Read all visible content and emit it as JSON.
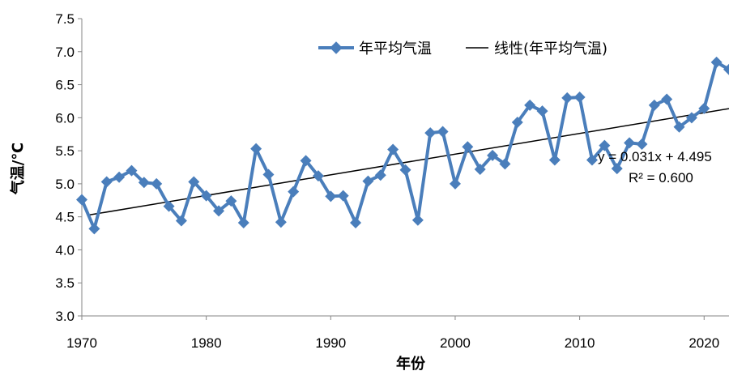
{
  "chart_data": {
    "type": "line",
    "xlabel": "年份",
    "ylabel": "气温/℃",
    "xlim": [
      1970,
      2022
    ],
    "ylim": [
      3.0,
      7.5
    ],
    "x_ticks": [
      "1970",
      "1980",
      "1990",
      "2000",
      "2010",
      "2020"
    ],
    "y_ticks": [
      "3.0",
      "3.5",
      "4.0",
      "4.5",
      "5.0",
      "5.5",
      "6.0",
      "6.5",
      "7.0",
      "7.5"
    ],
    "legend_position": "top-right",
    "series": [
      {
        "name": "年平均气温",
        "color": "#4a7ebb",
        "marker": "diamond",
        "x": [
          1970,
          1971,
          1972,
          1973,
          1974,
          1975,
          1976,
          1977,
          1978,
          1979,
          1980,
          1981,
          1982,
          1983,
          1984,
          1985,
          1986,
          1987,
          1988,
          1989,
          1990,
          1991,
          1992,
          1993,
          1994,
          1995,
          1996,
          1997,
          1998,
          1999,
          2000,
          2001,
          2002,
          2003,
          2004,
          2005,
          2006,
          2007,
          2008,
          2009,
          2010,
          2011,
          2012,
          2013,
          2014,
          2015,
          2016,
          2017,
          2018,
          2019,
          2020,
          2021,
          2022
        ],
        "values": [
          4.76,
          4.32,
          5.03,
          5.1,
          5.2,
          5.02,
          5.0,
          4.66,
          4.44,
          5.03,
          4.82,
          4.59,
          4.74,
          4.41,
          5.53,
          5.14,
          4.42,
          4.88,
          5.35,
          5.12,
          4.81,
          4.82,
          4.41,
          5.04,
          5.13,
          5.52,
          5.21,
          4.45,
          5.77,
          5.79,
          5.0,
          5.56,
          5.22,
          5.43,
          5.3,
          5.93,
          6.19,
          6.1,
          5.36,
          6.3,
          6.31,
          5.36,
          5.58,
          5.23,
          5.62,
          5.6,
          6.19,
          6.28,
          5.86,
          6.0,
          6.14,
          6.84,
          6.73
        ]
      },
      {
        "name": "线性(年平均气温)",
        "color": "#000000",
        "type": "trendline",
        "x": [
          1970,
          2022
        ],
        "values": [
          4.526,
          6.138
        ]
      }
    ],
    "annotations": [
      "y = 0.031x + 4.495",
      "R² = 0.600"
    ]
  }
}
